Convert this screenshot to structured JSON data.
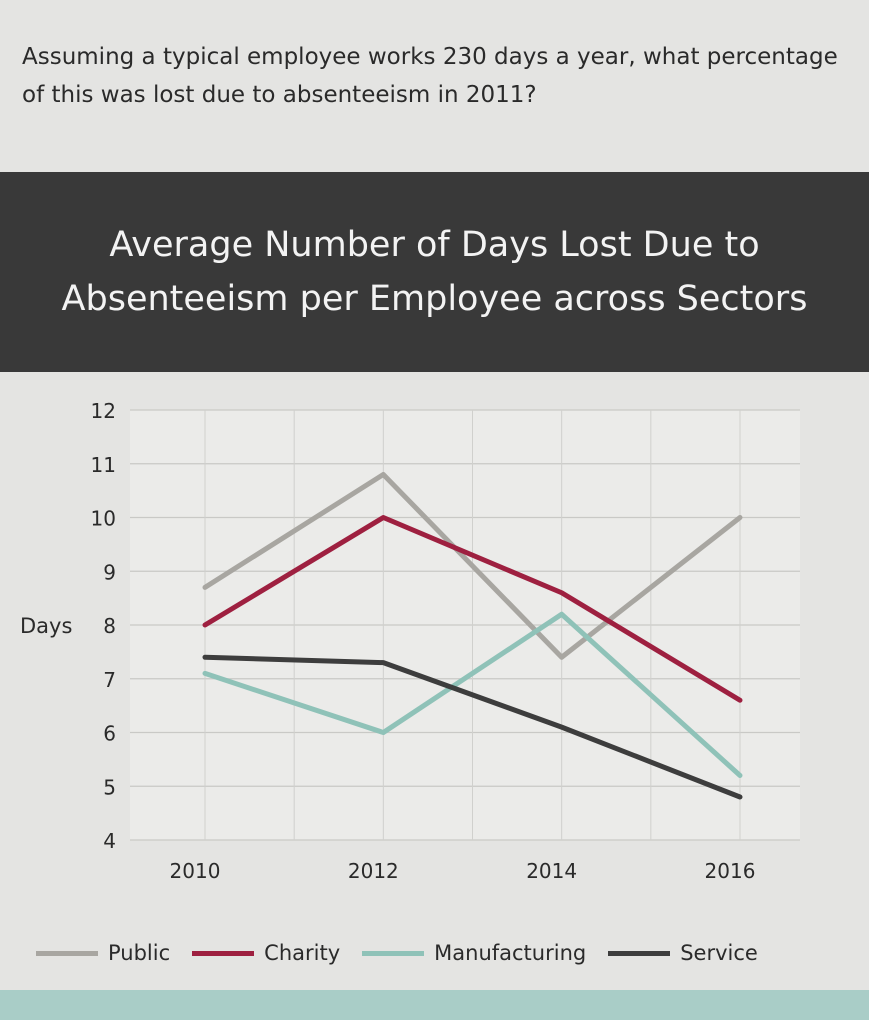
{
  "question": "Assuming a typical employee works 230 days a year, what percentage of this was lost due to absenteeism in 2011?",
  "chart_data": {
    "type": "line",
    "title": "Average Number of Days Lost Due to Absenteeism per Employee across Sectors",
    "xlabel": "",
    "ylabel": "Days",
    "x": [
      2010,
      2012,
      2014,
      2016
    ],
    "x_ticks": [
      "2010",
      "2012",
      "2014",
      "2016"
    ],
    "y_ticks": [
      "4",
      "5",
      "6",
      "7",
      "8",
      "9",
      "10",
      "11",
      "12"
    ],
    "ylim": [
      4,
      12
    ],
    "grid": true,
    "legend": "bottom",
    "series": [
      {
        "name": "Public",
        "color": "#a8a6a1",
        "values": [
          8.7,
          10.8,
          7.4,
          10.0
        ]
      },
      {
        "name": "Charity",
        "color": "#9e2040",
        "values": [
          8.0,
          10.0,
          8.6,
          6.6
        ]
      },
      {
        "name": "Manufacturing",
        "color": "#8fc2b8",
        "values": [
          7.1,
          6.0,
          8.2,
          5.2
        ]
      },
      {
        "name": "Service",
        "color": "#3d3d3d",
        "values": [
          7.4,
          7.3,
          6.1,
          4.8
        ]
      }
    ]
  }
}
